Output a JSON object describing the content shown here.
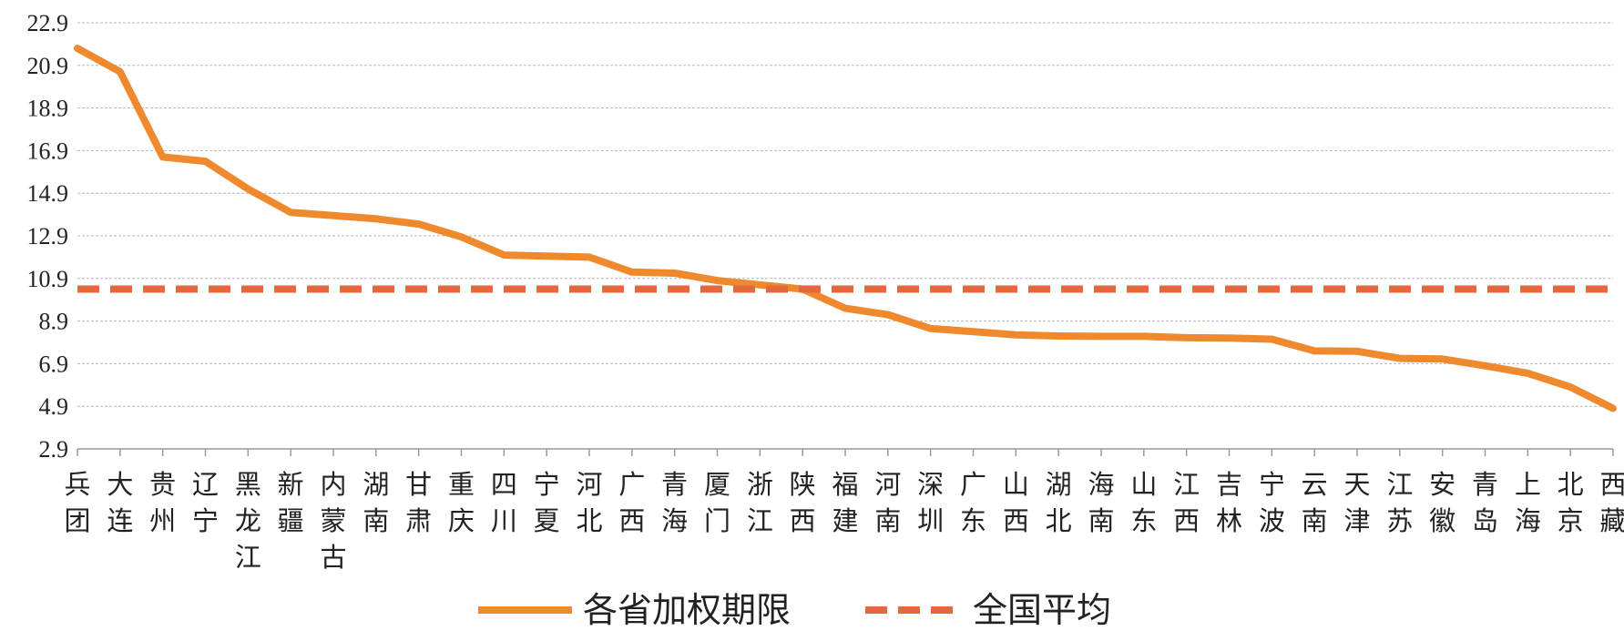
{
  "chart_data": {
    "type": "line",
    "title": "",
    "xlabel": "",
    "ylabel": "",
    "ylim": [
      2.9,
      22.9
    ],
    "yticks": [
      "22.9",
      "20.9",
      "18.9",
      "16.9",
      "14.9",
      "12.9",
      "10.9",
      "8.9",
      "6.9",
      "4.9",
      "2.9"
    ],
    "grid": "horizontal-dashed",
    "legend_position": "bottom-center",
    "categories": [
      [
        "兵",
        "团"
      ],
      [
        "大",
        "连"
      ],
      [
        "贵",
        "州"
      ],
      [
        "辽",
        "宁"
      ],
      [
        "黑",
        "龙",
        "江"
      ],
      [
        "新",
        "疆"
      ],
      [
        "内",
        "蒙",
        "古"
      ],
      [
        "湖",
        "南"
      ],
      [
        "甘",
        "肃"
      ],
      [
        "重",
        "庆"
      ],
      [
        "四",
        "川"
      ],
      [
        "宁",
        "夏"
      ],
      [
        "河",
        "北"
      ],
      [
        "广",
        "西"
      ],
      [
        "青",
        "海"
      ],
      [
        "厦",
        "门"
      ],
      [
        "浙",
        "江"
      ],
      [
        "陕",
        "西"
      ],
      [
        "福",
        "建"
      ],
      [
        "河",
        "南"
      ],
      [
        "深",
        "圳"
      ],
      [
        "广",
        "东"
      ],
      [
        "山",
        "西"
      ],
      [
        "湖",
        "北"
      ],
      [
        "海",
        "南"
      ],
      [
        "山",
        "东"
      ],
      [
        "江",
        "西"
      ],
      [
        "吉",
        "林"
      ],
      [
        "宁",
        "波"
      ],
      [
        "云",
        "南"
      ],
      [
        "天",
        "津"
      ],
      [
        "江",
        "苏"
      ],
      [
        "安",
        "徽"
      ],
      [
        "青",
        "岛"
      ],
      [
        "上",
        "海"
      ],
      [
        "北",
        "京"
      ],
      [
        "西",
        "藏"
      ]
    ],
    "series": [
      {
        "name": "各省加权期限",
        "style": "solid",
        "color": "#EE8A2D",
        "values": [
          21.7,
          20.6,
          16.6,
          16.4,
          15.1,
          14.0,
          13.85,
          13.7,
          13.45,
          12.85,
          12.0,
          11.95,
          11.9,
          11.2,
          11.15,
          10.8,
          10.6,
          10.4,
          9.5,
          9.2,
          8.55,
          8.4,
          8.25,
          8.2,
          8.18,
          8.18,
          8.12,
          8.1,
          8.05,
          7.5,
          7.48,
          7.15,
          7.12,
          6.8,
          6.45,
          5.8,
          4.8
        ]
      },
      {
        "name": "全国平均",
        "style": "dashed",
        "color": "#E2693B",
        "values": [
          10.4,
          10.4,
          10.4,
          10.4,
          10.4,
          10.4,
          10.4,
          10.4,
          10.4,
          10.4,
          10.4,
          10.4,
          10.4,
          10.4,
          10.4,
          10.4,
          10.4,
          10.4,
          10.4,
          10.4,
          10.4,
          10.4,
          10.4,
          10.4,
          10.4,
          10.4,
          10.4,
          10.4,
          10.4,
          10.4,
          10.4,
          10.4,
          10.4,
          10.4,
          10.4,
          10.4,
          10.4
        ]
      }
    ]
  }
}
